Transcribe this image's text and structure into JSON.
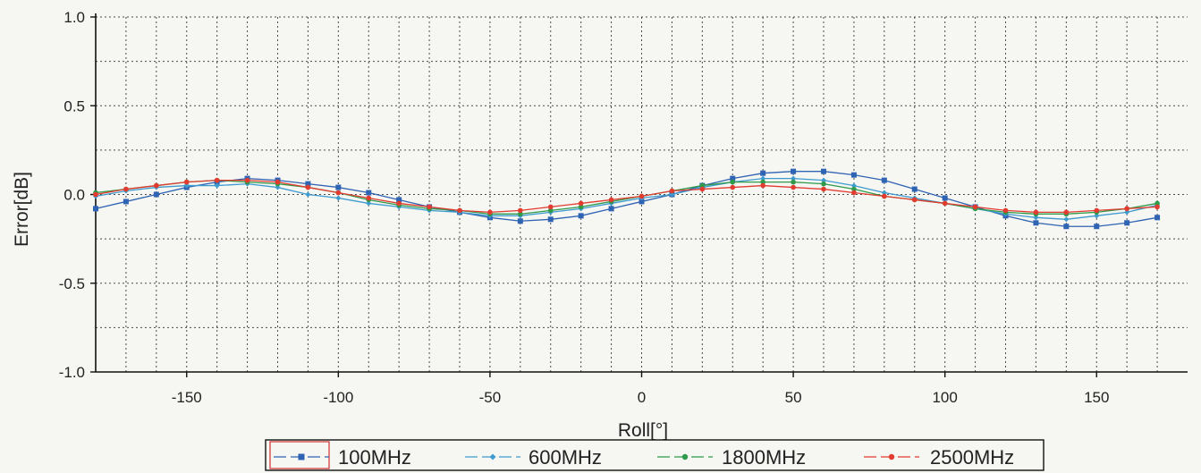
{
  "chart_data": {
    "type": "line",
    "xlabel": "Roll[°]",
    "ylabel": "Error[dB]",
    "xlim": [
      -180,
      180
    ],
    "ylim": [
      -1.0,
      1.0
    ],
    "xticks": [
      -150,
      -100,
      -50,
      0,
      50,
      100,
      150
    ],
    "xtick_labels": [
      "-150",
      "-100",
      "-50",
      "0",
      "50",
      "100",
      "150"
    ],
    "yticks": [
      1.0,
      0.5,
      0.0,
      -0.5,
      -1.0
    ],
    "ytick_labels": [
      "1.0",
      "0.5",
      "0.0",
      "-0.5",
      "-1.0"
    ],
    "grid": true,
    "legend_position": "bottom",
    "x": [
      -180,
      -170,
      -160,
      -150,
      -140,
      -130,
      -120,
      -110,
      -100,
      -90,
      -80,
      -70,
      -60,
      -50,
      -40,
      -30,
      -20,
      -10,
      0,
      10,
      20,
      30,
      40,
      50,
      60,
      70,
      80,
      90,
      100,
      110,
      120,
      130,
      140,
      150,
      160,
      170
    ],
    "series": [
      {
        "name": "100MHz",
        "color": "#2f63b3",
        "marker": "square",
        "values": [
          -0.08,
          -0.04,
          0.0,
          0.04,
          0.07,
          0.09,
          0.08,
          0.06,
          0.04,
          0.01,
          -0.03,
          -0.07,
          -0.1,
          -0.13,
          -0.15,
          -0.14,
          -0.12,
          -0.08,
          -0.04,
          0.0,
          0.05,
          0.09,
          0.12,
          0.13,
          0.13,
          0.11,
          0.08,
          0.03,
          -0.02,
          -0.07,
          -0.12,
          -0.16,
          -0.18,
          -0.18,
          -0.16,
          -0.13
        ]
      },
      {
        "name": "600MHz",
        "color": "#3d9bd0",
        "marker": "diamond",
        "values": [
          -0.01,
          0.02,
          0.04,
          0.05,
          0.05,
          0.06,
          0.04,
          0.0,
          -0.02,
          -0.05,
          -0.07,
          -0.09,
          -0.1,
          -0.12,
          -0.12,
          -0.1,
          -0.08,
          -0.05,
          -0.02,
          0.0,
          0.04,
          0.07,
          0.09,
          0.09,
          0.08,
          0.05,
          0.01,
          -0.02,
          -0.05,
          -0.08,
          -0.11,
          -0.13,
          -0.14,
          -0.12,
          -0.1,
          -0.06
        ]
      },
      {
        "name": "1800MHz",
        "color": "#2e9a4a",
        "marker": "circle",
        "values": [
          0.01,
          0.03,
          0.05,
          0.07,
          0.08,
          0.07,
          0.06,
          0.04,
          0.01,
          -0.03,
          -0.06,
          -0.08,
          -0.09,
          -0.11,
          -0.11,
          -0.09,
          -0.07,
          -0.04,
          -0.01,
          0.02,
          0.05,
          0.07,
          0.07,
          0.07,
          0.06,
          0.03,
          -0.01,
          -0.03,
          -0.05,
          -0.08,
          -0.1,
          -0.11,
          -0.11,
          -0.1,
          -0.08,
          -0.05
        ]
      },
      {
        "name": "2500MHz",
        "color": "#e23b30",
        "marker": "circle",
        "values": [
          0.0,
          0.03,
          0.05,
          0.07,
          0.08,
          0.08,
          0.07,
          0.04,
          0.01,
          -0.02,
          -0.05,
          -0.07,
          -0.09,
          -0.1,
          -0.09,
          -0.07,
          -0.05,
          -0.03,
          -0.01,
          0.02,
          0.03,
          0.04,
          0.05,
          0.04,
          0.03,
          0.01,
          -0.01,
          -0.03,
          -0.05,
          -0.07,
          -0.09,
          -0.1,
          -0.1,
          -0.09,
          -0.08,
          -0.07
        ]
      }
    ]
  }
}
